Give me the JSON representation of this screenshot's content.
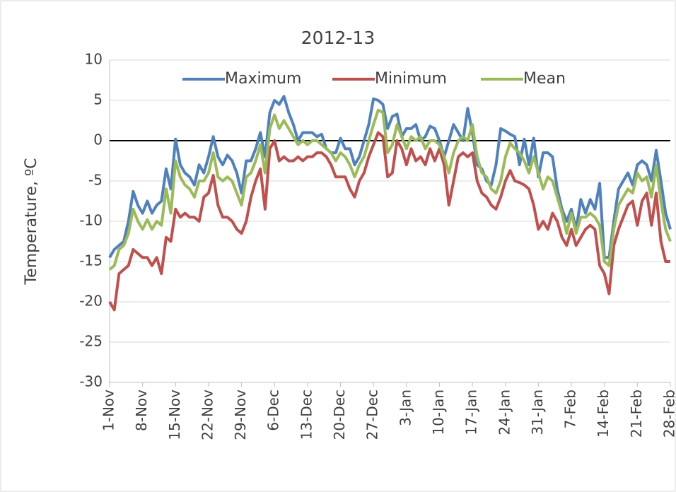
{
  "chart_data": {
    "type": "line",
    "title": "2012-13",
    "y_label": "Temperature, ºC",
    "categories": [
      "1-Nov",
      null,
      null,
      null,
      null,
      null,
      null,
      "8-Nov",
      null,
      null,
      null,
      null,
      null,
      null,
      "15-Nov",
      null,
      null,
      null,
      null,
      null,
      null,
      "22-Nov",
      null,
      null,
      null,
      null,
      null,
      null,
      "29-Nov",
      null,
      null,
      null,
      null,
      null,
      null,
      "6-Dec",
      null,
      null,
      null,
      null,
      null,
      null,
      "13-Dec",
      null,
      null,
      null,
      null,
      null,
      null,
      "20-Dec",
      null,
      null,
      null,
      null,
      null,
      null,
      "27-Dec",
      null,
      null,
      null,
      null,
      null,
      null,
      "3-Jan",
      null,
      null,
      null,
      null,
      null,
      null,
      "10-Jan",
      null,
      null,
      null,
      null,
      null,
      null,
      "17-Jan",
      null,
      null,
      null,
      null,
      null,
      null,
      "24-Jan",
      null,
      null,
      null,
      null,
      null,
      null,
      "31-Jan",
      null,
      null,
      null,
      null,
      null,
      null,
      "7-Feb",
      null,
      null,
      null,
      null,
      null,
      null,
      "14-Feb",
      null,
      null,
      null,
      null,
      null,
      null,
      "21-Feb",
      null,
      null,
      null,
      null,
      null,
      null,
      "28-Feb"
    ],
    "series": [
      {
        "name": "Maximum",
        "color": "#4f81bd",
        "values": [
          -14.5,
          -13.5,
          -13,
          -12.5,
          -10,
          -6.3,
          -8,
          -9,
          -7.5,
          -9,
          -8,
          -7.5,
          -3.5,
          -6,
          0.2,
          -3,
          -4,
          -4.5,
          -5.5,
          -3,
          -4,
          -2,
          0.5,
          -2,
          -3,
          -1.8,
          -2.5,
          -4,
          -6.5,
          -2.5,
          -2.5,
          -1,
          1,
          -2,
          3.5,
          5,
          4.5,
          5.5,
          3.5,
          2,
          0,
          1,
          1,
          1,
          0.5,
          0.8,
          -1,
          -1.5,
          -1.5,
          0.3,
          -1,
          -1,
          -3,
          -2,
          0,
          2,
          5.2,
          5,
          4.5,
          1.5,
          3,
          3.3,
          0.5,
          1.5,
          1.5,
          2,
          0,
          0.5,
          1.8,
          1.5,
          0,
          -2,
          0,
          2,
          1,
          0,
          4,
          1,
          -3,
          -3.5,
          -5,
          -5.5,
          -3,
          1.5,
          1.2,
          0.8,
          0.5,
          -3,
          0.2,
          -3,
          0.3,
          -4.5,
          -1.5,
          -1.5,
          -2,
          -6,
          -8.5,
          -10,
          -8.5,
          -11,
          -7.3,
          -9,
          -7.3,
          -8.5,
          -5.3,
          -14.5,
          -14.5,
          -10,
          -6,
          -5,
          -4,
          -5.5,
          -3,
          -2.5,
          -3,
          -5,
          -1.2,
          -5,
          -9,
          -11
        ]
      },
      {
        "name": "Minimum",
        "color": "#c0504d",
        "values": [
          -20,
          -21,
          -16.5,
          -16,
          -15.5,
          -13.5,
          -14,
          -14.5,
          -14.5,
          -15.5,
          -14.5,
          -16.5,
          -12,
          -12.5,
          -8.5,
          -9.5,
          -9,
          -9.5,
          -9.5,
          -10,
          -7,
          -6.5,
          -4.3,
          -8,
          -9.5,
          -9.5,
          -10,
          -11,
          -11.5,
          -10,
          -7,
          -5,
          -3.5,
          -8.5,
          -1,
          0,
          -2.5,
          -2,
          -2.5,
          -2.5,
          -2,
          -2.5,
          -2,
          -2,
          -1.5,
          -1.5,
          -2,
          -3,
          -4.5,
          -4.5,
          -4.5,
          -6,
          -7,
          -5,
          -4,
          -2,
          -0.5,
          1,
          0.5,
          -4.5,
          -4,
          0,
          -1,
          -3,
          -1,
          -2.5,
          -2,
          -3,
          -1,
          -2.5,
          -1,
          -3,
          -8,
          -5,
          -2,
          -1.5,
          -2,
          -1.5,
          -5,
          -6.5,
          -7,
          -8,
          -8.5,
          -7,
          -5,
          -3.7,
          -5,
          -5.2,
          -5.5,
          -6,
          -8,
          -11,
          -10,
          -11,
          -9,
          -10,
          -12,
          -13,
          -11,
          -13,
          -12,
          -11,
          -10.5,
          -11,
          -15.5,
          -16.5,
          -19,
          -13,
          -11,
          -9.5,
          -8,
          -7.5,
          -10.5,
          -7.5,
          -6.5,
          -10.5,
          -6.5,
          -12.5,
          -15,
          -15
        ]
      },
      {
        "name": "Mean",
        "color": "#9bbb59",
        "values": [
          -16,
          -15.5,
          -13.5,
          -13,
          -11.5,
          -8.5,
          -10,
          -11,
          -9.8,
          -11,
          -10,
          -10.5,
          -6,
          -9,
          -2.5,
          -4.5,
          -5.5,
          -6,
          -7,
          -5,
          -5,
          -4,
          -1.5,
          -4.5,
          -5,
          -4.5,
          -5,
          -6.5,
          -8,
          -4.5,
          -4,
          -2.5,
          -0.5,
          -4,
          1.5,
          3.2,
          1.5,
          2.5,
          1.5,
          0.5,
          -0.5,
          0,
          -0.5,
          0,
          0,
          -0.5,
          -1,
          -1.5,
          -2.5,
          -1.5,
          -2,
          -3,
          -4.5,
          -3,
          -2,
          0,
          2,
          3.8,
          3.5,
          -1.5,
          -0.5,
          2,
          0.5,
          -1,
          0.5,
          0,
          0.5,
          -1,
          0,
          0,
          -0.5,
          -2,
          -4,
          -1.5,
          0,
          0.5,
          0,
          2,
          -2,
          -4,
          -4.5,
          -6,
          -6.5,
          -5,
          -2,
          -0.3,
          -1,
          -1.5,
          -2.5,
          -4,
          -2,
          -4,
          -6,
          -4.5,
          -5,
          -7,
          -9,
          -11.5,
          -9,
          -11.5,
          -9.5,
          -9.5,
          -9,
          -9.5,
          -10.5,
          -15,
          -15.5,
          -11,
          -8,
          -7,
          -6,
          -6.5,
          -4,
          -5,
          -4.5,
          -7,
          -3,
          -7.5,
          -11,
          -12.5
        ]
      }
    ],
    "ylim": [
      -30,
      10
    ],
    "yticks": [
      -30,
      -25,
      -20,
      -15,
      -10,
      -5,
      0,
      5,
      10
    ],
    "grid": true,
    "zero_line": true,
    "legend": "top"
  }
}
